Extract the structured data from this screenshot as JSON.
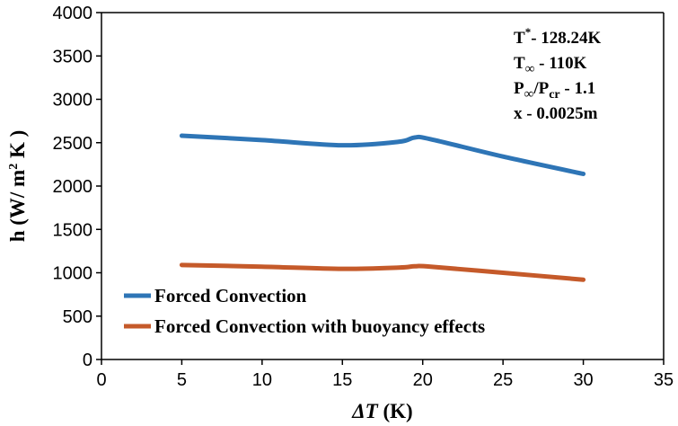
{
  "chart_data": {
    "type": "line",
    "title": "",
    "xlabel_symbol": "ΔT",
    "xlabel_unit": "(K)",
    "ylabel_main": "h (W/ m",
    "ylabel_sup": "2",
    "ylabel_tail": " K )",
    "xlim": [
      0,
      35
    ],
    "ylim": [
      0,
      4000
    ],
    "x_ticks": [
      "0",
      "5",
      "10",
      "15",
      "20",
      "25",
      "30",
      "35"
    ],
    "y_ticks": [
      "0",
      "500",
      "1000",
      "1500",
      "2000",
      "2500",
      "3000",
      "3500",
      "4000"
    ],
    "grid": false,
    "legend_position": "bottom-left",
    "series": [
      {
        "name": "Forced Convection",
        "color": "#2e75b6",
        "x": [
          5,
          10,
          15,
          18.5,
          19.5,
          20.5,
          25,
          30
        ],
        "y": [
          2580,
          2530,
          2470,
          2510,
          2560,
          2540,
          2340,
          2140
        ]
      },
      {
        "name": "Forced Convection with buoyancy effects",
        "color": "#c55a2a",
        "x": [
          5,
          10,
          15,
          18.5,
          19.5,
          20.5,
          25,
          30
        ],
        "y": [
          1090,
          1070,
          1045,
          1060,
          1075,
          1070,
          1000,
          920
        ]
      }
    ],
    "annotations": {
      "line1": {
        "main": "T",
        "sup": "*",
        "tail": "- 128.24K"
      },
      "line2": {
        "main": "T",
        "sub": "∞",
        "tail": " - 110K"
      },
      "line3": {
        "p1": "P",
        "sub1": "∞",
        "mid": "/P",
        "sub2": "cr",
        "tail": " - 1.1"
      },
      "line4": "x - 0.0025m"
    }
  }
}
